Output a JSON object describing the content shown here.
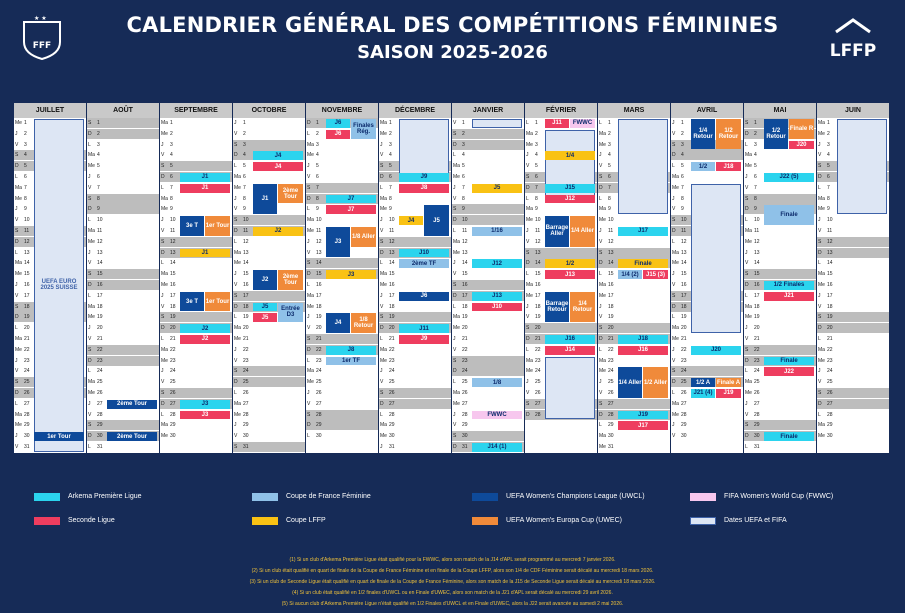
{
  "header": {
    "title": "CALENDRIER GÉNÉRAL DES COMPÉTITIONS FÉMININES",
    "season": "SAISON 2025-2026",
    "fff_label": "FFF",
    "lffp_label": "LFFP"
  },
  "colors": {
    "cyan": "#2bd4ee",
    "red": "#ee3d5f",
    "lblue": "#8fc1e8",
    "dblue": "#0e4a9a",
    "yellow": "#f9c214",
    "orange": "#f08a3a",
    "pink": "#f7c7ee",
    "uefa": "#dde6f4"
  },
  "months": [
    {
      "name": "JUILLET",
      "start": 2,
      "days": 31
    },
    {
      "name": "AOÛT",
      "start": 5,
      "days": 31
    },
    {
      "name": "SEPTEMBRE",
      "start": 1,
      "days": 30
    },
    {
      "name": "OCTOBRE",
      "start": 3,
      "days": 31
    },
    {
      "name": "NOVEMBRE",
      "start": 6,
      "days": 30
    },
    {
      "name": "DÉCEMBRE",
      "start": 1,
      "days": 31
    },
    {
      "name": "JANVIER",
      "start": 4,
      "days": 31
    },
    {
      "name": "FÉVRIER",
      "start": 0,
      "days": 28
    },
    {
      "name": "MARS",
      "start": 0,
      "days": 31
    },
    {
      "name": "AVRIL",
      "start": 3,
      "days": 30
    },
    {
      "name": "MAI",
      "start": 5,
      "days": 31
    },
    {
      "name": "JUIN",
      "start": 1,
      "days": 30
    }
  ],
  "weekday_letters": [
    "L",
    "Ma",
    "Me",
    "J",
    "V",
    "S",
    "D"
  ],
  "events": [
    {
      "m": 0,
      "d1": 1,
      "d2": 31,
      "c": "uefa",
      "t": "UEFA EURO 2025 SUISSE"
    },
    {
      "m": 0,
      "d1": 30,
      "d2": 30,
      "c": "dblue",
      "t": "1er Tour"
    },
    {
      "m": 1,
      "d1": 27,
      "d2": 27,
      "c": "dblue",
      "t": "2ème Tour"
    },
    {
      "m": 1,
      "d1": 30,
      "d2": 30,
      "c": "dblue",
      "t": "2ème Tour"
    },
    {
      "m": 2,
      "d1": 6,
      "d2": 6,
      "c": "cyan",
      "t": "J1"
    },
    {
      "m": 2,
      "d1": 7,
      "d2": 7,
      "c": "red",
      "t": "J1"
    },
    {
      "m": 2,
      "d1": 10,
      "d2": 11,
      "c": "dblue",
      "t": "3e T",
      "half": "l"
    },
    {
      "m": 2,
      "d1": 10,
      "d2": 11,
      "c": "orange",
      "t": "1er Tour",
      "half": "r"
    },
    {
      "m": 2,
      "d1": 13,
      "d2": 13,
      "c": "yellow",
      "t": "J1"
    },
    {
      "m": 2,
      "d1": 17,
      "d2": 18,
      "c": "dblue",
      "t": "3e T",
      "half": "l"
    },
    {
      "m": 2,
      "d1": 17,
      "d2": 18,
      "c": "orange",
      "t": "1er Tour",
      "half": "r"
    },
    {
      "m": 2,
      "d1": 20,
      "d2": 20,
      "c": "cyan",
      "t": "J2"
    },
    {
      "m": 2,
      "d1": 21,
      "d2": 21,
      "c": "red",
      "t": "J2"
    },
    {
      "m": 2,
      "d1": 27,
      "d2": 27,
      "c": "cyan",
      "t": "J3"
    },
    {
      "m": 2,
      "d1": 28,
      "d2": 28,
      "c": "red",
      "t": "J3"
    },
    {
      "m": 3,
      "d1": 4,
      "d2": 4,
      "c": "cyan",
      "t": "J4"
    },
    {
      "m": 3,
      "d1": 5,
      "d2": 5,
      "c": "red",
      "t": "J4"
    },
    {
      "m": 3,
      "d1": 7,
      "d2": 9,
      "c": "dblue",
      "t": "J1",
      "half": "l"
    },
    {
      "m": 3,
      "d1": 7,
      "d2": 8,
      "c": "orange",
      "t": "2ème Tour",
      "half": "r"
    },
    {
      "m": 3,
      "d1": 11,
      "d2": 11,
      "c": "yellow",
      "t": "J2"
    },
    {
      "m": 3,
      "d1": 15,
      "d2": 16,
      "c": "dblue",
      "t": "J2",
      "half": "l"
    },
    {
      "m": 3,
      "d1": 15,
      "d2": 16,
      "c": "orange",
      "t": "2ème Tour",
      "half": "r"
    },
    {
      "m": 3,
      "d1": 18,
      "d2": 18,
      "c": "cyan",
      "t": "J5",
      "half": "l"
    },
    {
      "m": 3,
      "d1": 19,
      "d2": 19,
      "c": "red",
      "t": "J5",
      "half": "l"
    },
    {
      "m": 3,
      "d1": 18,
      "d2": 19,
      "c": "lblue",
      "t": "Entrée D3",
      "half": "r"
    },
    {
      "m": 4,
      "d1": 1,
      "d2": 1,
      "c": "cyan",
      "t": "J6",
      "half": "l"
    },
    {
      "m": 4,
      "d1": 2,
      "d2": 2,
      "c": "red",
      "t": "J6",
      "half": "l"
    },
    {
      "m": 4,
      "d1": 1,
      "d2": 2,
      "c": "lblue",
      "t": "Finales Rég.",
      "half": "r"
    },
    {
      "m": 4,
      "d1": 8,
      "d2": 8,
      "c": "cyan",
      "t": "J7"
    },
    {
      "m": 4,
      "d1": 9,
      "d2": 9,
      "c": "red",
      "t": "J7"
    },
    {
      "m": 4,
      "d1": 11,
      "d2": 13,
      "c": "dblue",
      "t": "J3",
      "half": "l"
    },
    {
      "m": 4,
      "d1": 11,
      "d2": 12,
      "c": "orange",
      "t": "1/8 Aller",
      "half": "r"
    },
    {
      "m": 4,
      "d1": 15,
      "d2": 15,
      "c": "yellow",
      "t": "J3"
    },
    {
      "m": 4,
      "d1": 19,
      "d2": 20,
      "c": "dblue",
      "t": "J4",
      "half": "l"
    },
    {
      "m": 4,
      "d1": 19,
      "d2": 20,
      "c": "orange",
      "t": "1/8 Retour",
      "half": "r"
    },
    {
      "m": 4,
      "d1": 22,
      "d2": 22,
      "c": "cyan",
      "t": "J8"
    },
    {
      "m": 4,
      "d1": 23,
      "d2": 23,
      "c": "lblue",
      "t": "1er TF"
    },
    {
      "m": 5,
      "d1": 1,
      "d2": 6,
      "c": "uefa",
      "t": ""
    },
    {
      "m": 5,
      "d1": 6,
      "d2": 6,
      "c": "cyan",
      "t": "J9"
    },
    {
      "m": 5,
      "d1": 7,
      "d2": 7,
      "c": "red",
      "t": "J8"
    },
    {
      "m": 5,
      "d1": 9,
      "d2": 11,
      "c": "dblue",
      "t": "J5",
      "half": "r"
    },
    {
      "m": 5,
      "d1": 10,
      "d2": 10,
      "c": "yellow",
      "t": "J4",
      "half": "l"
    },
    {
      "m": 5,
      "d1": 13,
      "d2": 13,
      "c": "cyan",
      "t": "J10"
    },
    {
      "m": 5,
      "d1": 14,
      "d2": 14,
      "c": "lblue",
      "t": "2ème TF"
    },
    {
      "m": 5,
      "d1": 17,
      "d2": 17,
      "c": "dblue",
      "t": "J6"
    },
    {
      "m": 5,
      "d1": 20,
      "d2": 20,
      "c": "cyan",
      "t": "J11"
    },
    {
      "m": 5,
      "d1": 21,
      "d2": 21,
      "c": "red",
      "t": "J9"
    },
    {
      "m": 6,
      "d1": 1,
      "d2": 1,
      "c": "uefa",
      "t": ""
    },
    {
      "m": 6,
      "d1": 7,
      "d2": 7,
      "c": "yellow",
      "t": "J5"
    },
    {
      "m": 6,
      "d1": 11,
      "d2": 11,
      "c": "lblue",
      "t": "1/16"
    },
    {
      "m": 6,
      "d1": 14,
      "d2": 14,
      "c": "cyan",
      "t": "J12"
    },
    {
      "m": 6,
      "d1": 17,
      "d2": 17,
      "c": "cyan",
      "t": "J13"
    },
    {
      "m": 6,
      "d1": 18,
      "d2": 18,
      "c": "red",
      "t": "J10"
    },
    {
      "m": 6,
      "d1": 25,
      "d2": 25,
      "c": "lblue",
      "t": "1/8"
    },
    {
      "m": 6,
      "d1": 28,
      "d2": 28,
      "c": "pink",
      "t": "FWWC"
    },
    {
      "m": 6,
      "d1": 31,
      "d2": 31,
      "c": "cyan",
      "t": "J14 (1)"
    },
    {
      "m": 7,
      "d1": 1,
      "d2": 1,
      "c": "red",
      "t": "J11",
      "half": "l"
    },
    {
      "m": 7,
      "d1": 1,
      "d2": 1,
      "c": "pink",
      "t": "FWWC",
      "half": "r"
    },
    {
      "m": 7,
      "d1": 2,
      "d2": 8,
      "c": "uefa",
      "t": ""
    },
    {
      "m": 7,
      "d1": 4,
      "d2": 4,
      "c": "yellow",
      "t": "1/4"
    },
    {
      "m": 7,
      "d1": 7,
      "d2": 7,
      "c": "cyan",
      "t": "J15"
    },
    {
      "m": 7,
      "d1": 8,
      "d2": 8,
      "c": "red",
      "t": "J12"
    },
    {
      "m": 7,
      "d1": 10,
      "d2": 12,
      "c": "dblue",
      "t": "Barrage Aller",
      "half": "l"
    },
    {
      "m": 7,
      "d1": 10,
      "d2": 12,
      "c": "orange",
      "t": "1/4 Aller",
      "half": "r"
    },
    {
      "m": 7,
      "d1": 14,
      "d2": 14,
      "c": "yellow",
      "t": "1/2"
    },
    {
      "m": 7,
      "d1": 15,
      "d2": 15,
      "c": "red",
      "t": "J13"
    },
    {
      "m": 7,
      "d1": 17,
      "d2": 19,
      "c": "dblue",
      "t": "Barrage Retour",
      "half": "l"
    },
    {
      "m": 7,
      "d1": 17,
      "d2": 19,
      "c": "orange",
      "t": "1/4 Retour",
      "half": "r"
    },
    {
      "m": 7,
      "d1": 21,
      "d2": 21,
      "c": "cyan",
      "t": "J16"
    },
    {
      "m": 7,
      "d1": 22,
      "d2": 22,
      "c": "red",
      "t": "J14"
    },
    {
      "m": 7,
      "d1": 23,
      "d2": 28,
      "c": "uefa",
      "t": ""
    },
    {
      "m": 8,
      "d1": 1,
      "d2": 9,
      "c": "uefa",
      "t": ""
    },
    {
      "m": 8,
      "d1": 11,
      "d2": 11,
      "c": "cyan",
      "t": "J17"
    },
    {
      "m": 8,
      "d1": 14,
      "d2": 14,
      "c": "yellow",
      "t": "Finale"
    },
    {
      "m": 8,
      "d1": 15,
      "d2": 15,
      "c": "lblue",
      "t": "1/4 (2)",
      "half": "l"
    },
    {
      "m": 8,
      "d1": 15,
      "d2": 15,
      "c": "red",
      "t": "J15 (3)",
      "half": "r"
    },
    {
      "m": 8,
      "d1": 21,
      "d2": 21,
      "c": "cyan",
      "t": "J18"
    },
    {
      "m": 8,
      "d1": 22,
      "d2": 22,
      "c": "red",
      "t": "J16"
    },
    {
      "m": 8,
      "d1": 24,
      "d2": 26,
      "c": "dblue",
      "t": "1/4 Aller",
      "half": "l"
    },
    {
      "m": 8,
      "d1": 24,
      "d2": 26,
      "c": "orange",
      "t": "1/2 Aller",
      "half": "r"
    },
    {
      "m": 8,
      "d1": 28,
      "d2": 28,
      "c": "cyan",
      "t": "J19"
    },
    {
      "m": 8,
      "d1": 29,
      "d2": 29,
      "c": "red",
      "t": "J17"
    },
    {
      "m": 9,
      "d1": 1,
      "d2": 3,
      "c": "dblue",
      "t": "1/4 Retour",
      "half": "l"
    },
    {
      "m": 9,
      "d1": 1,
      "d2": 3,
      "c": "orange",
      "t": "1/2 Retour",
      "half": "r"
    },
    {
      "m": 9,
      "d1": 5,
      "d2": 5,
      "c": "lblue",
      "t": "1/2",
      "half": "l"
    },
    {
      "m": 9,
      "d1": 5,
      "d2": 5,
      "c": "red",
      "t": "J18",
      "half": "r"
    },
    {
      "m": 9,
      "d1": 7,
      "d2": 20,
      "c": "uefa",
      "t": ""
    },
    {
      "m": 9,
      "d1": 22,
      "d2": 22,
      "c": "cyan",
      "t": "J20"
    },
    {
      "m": 9,
      "d1": 25,
      "d2": 25,
      "c": "dblue",
      "t": "1/2 A",
      "half": "l"
    },
    {
      "m": 9,
      "d1": 25,
      "d2": 25,
      "c": "orange",
      "t": "Finale A",
      "half": "r"
    },
    {
      "m": 9,
      "d1": 26,
      "d2": 26,
      "c": "cyan",
      "t": "J21 (4)",
      "half": "l"
    },
    {
      "m": 9,
      "d1": 26,
      "d2": 26,
      "c": "red",
      "t": "J19",
      "half": "r"
    },
    {
      "m": 10,
      "d1": 1,
      "d2": 3,
      "c": "dblue",
      "t": "1/2 Retour",
      "half": "l"
    },
    {
      "m": 10,
      "d1": 1,
      "d2": 2,
      "c": "orange",
      "t": "Finale R",
      "half": "r"
    },
    {
      "m": 10,
      "d1": 3,
      "d2": 3,
      "c": "red",
      "t": "J20",
      "half": "r"
    },
    {
      "m": 10,
      "d1": 6,
      "d2": 6,
      "c": "cyan",
      "t": "J22 (5)"
    },
    {
      "m": 10,
      "d1": 9,
      "d2": 10,
      "c": "lblue",
      "t": "Finale"
    },
    {
      "m": 10,
      "d1": 16,
      "d2": 16,
      "c": "cyan",
      "t": "1/2 Finales"
    },
    {
      "m": 10,
      "d1": 17,
      "d2": 17,
      "c": "red",
      "t": "J21"
    },
    {
      "m": 10,
      "d1": 23,
      "d2": 23,
      "c": "cyan",
      "t": "Finale"
    },
    {
      "m": 10,
      "d1": 24,
      "d2": 24,
      "c": "red",
      "t": "J22"
    },
    {
      "m": 10,
      "d1": 30,
      "d2": 30,
      "c": "cyan",
      "t": "Finale"
    },
    {
      "m": 11,
      "d1": 1,
      "d2": 9,
      "c": "uefa",
      "t": ""
    }
  ],
  "legend": [
    {
      "c": "cyan",
      "label": "Arkema Première Ligue"
    },
    {
      "c": "lblue",
      "label": "Coupe de France Féminine"
    },
    {
      "c": "dblue",
      "label": "UEFA Women's Champions League (UWCL)"
    },
    {
      "c": "pink",
      "label": "FIFA Women's World Cup (FWWC)"
    },
    {
      "c": "red",
      "label": "Seconde Ligue"
    },
    {
      "c": "yellow",
      "label": "Coupe LFFP"
    },
    {
      "c": "orange",
      "label": "UEFA Women's Europa Cup (UWEC)"
    },
    {
      "c": "uefa",
      "label": "Dates UEFA et FIFA"
    }
  ],
  "notes": [
    "(1) Si un club d'Arkema Première Ligue était qualifié pour la FWWC, alors son match de la J14 d'APL serait programmé au mercredi 7 janvier 2026.",
    "(2) Si un club était qualifié en quart de finale de la Coupe de France Féminine et en finale de la Coupe LFFP, alors son 1/4 de CDF Féminine serait décalé au mercredi 18 mars 2026.",
    "(3) Si un club de Seconde Ligue était qualifié en quart de finale de la Coupe de France Féminine, alors son match de la J15 de Seconde Ligue serait décalé au mercredi 18 mars 2026.",
    "(4) Si un club était qualifié en 1/2 finales d'UWCL ou en Finale d'UWEC, alors son match de la J21 d'APL serait décalé au mercredi 29 avril 2026.",
    "(5) Si aucun club d'Arkema Première Ligue n'était qualifié en 1/2 Finales d'UWCL et en Finale d'UWEC, alors la J22 serait avancée au samedi 2 mai 2026."
  ]
}
